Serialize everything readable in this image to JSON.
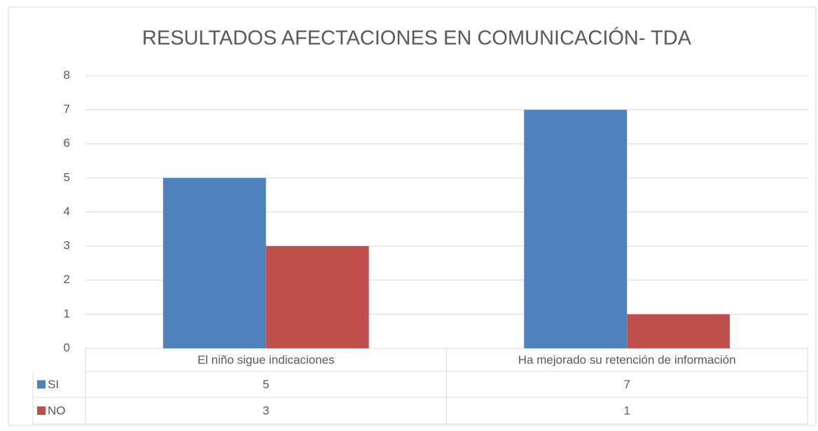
{
  "chart_data": {
    "type": "bar",
    "title": "RESULTADOS AFECTACIONES EN COMUNICACIÓN- TDA",
    "categories": [
      "El niño sigue indicaciones",
      "Ha mejorado su retención de información"
    ],
    "series": [
      {
        "name": "SI",
        "color": "#4f81bd",
        "values": [
          5,
          7
        ]
      },
      {
        "name": "NO",
        "color": "#c0504d",
        "values": [
          3,
          1
        ]
      }
    ],
    "ylim": [
      0,
      8
    ],
    "yticks": [
      0,
      1,
      2,
      3,
      4,
      5,
      6,
      7,
      8
    ],
    "grid": true,
    "data_table": true
  }
}
